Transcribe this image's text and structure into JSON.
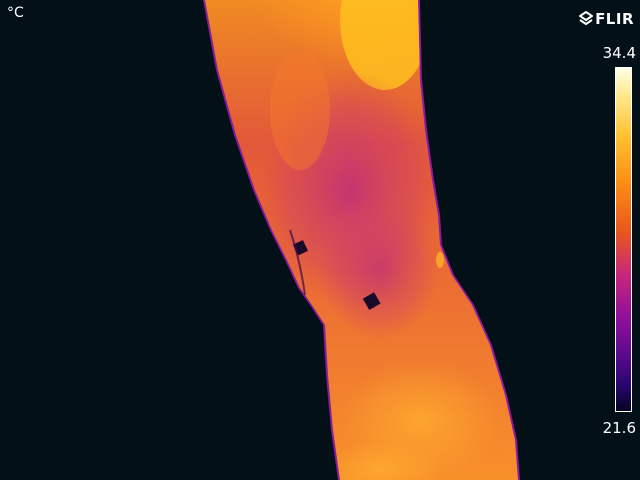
{
  "image": {
    "description_scene": "thermal-camera-arm-view",
    "unit": "°C",
    "brand": "FLIR"
  },
  "scale": {
    "max": "34.4",
    "min": "21.6",
    "palette": [
      "#ffffe8",
      "#ffc030",
      "#fa8c14",
      "#e8561e",
      "#c8287a",
      "#94109a",
      "#5a0a8e",
      "#060420"
    ]
  },
  "colors": {
    "background": "#041018",
    "text": "#ffffff"
  }
}
